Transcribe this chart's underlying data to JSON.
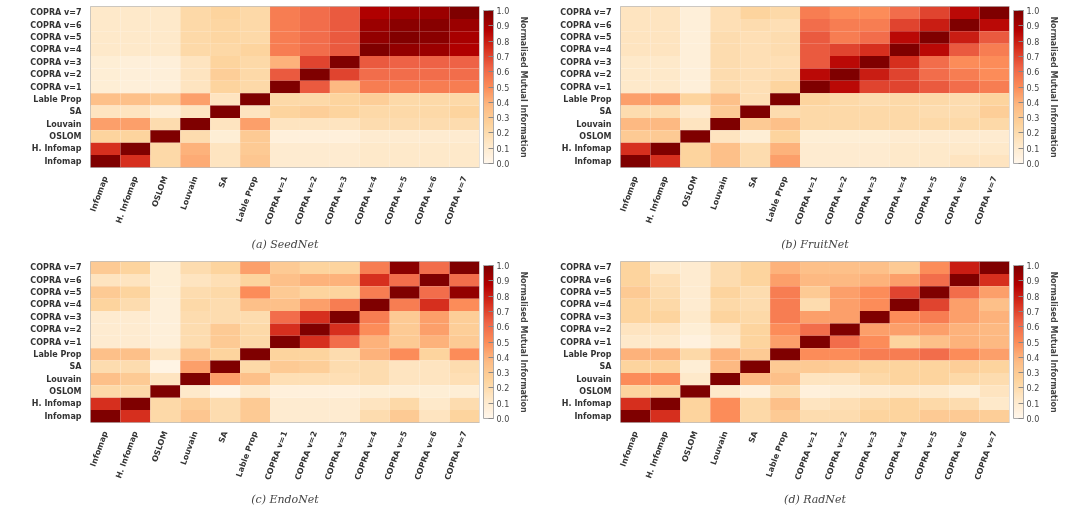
{
  "chart_data": [
    {
      "type": "heatmap",
      "title": "(a) SeedNet",
      "clabel": "Normalised Mutual Information",
      "clim": [
        0,
        1
      ],
      "cticks": [
        {
          "value": 0,
          "label": "0.0"
        },
        {
          "value": 0.1,
          "label": "0.1"
        },
        {
          "value": 0.2,
          "label": "0.2"
        },
        {
          "value": 0.3,
          "label": "0.3"
        },
        {
          "value": 0.4,
          "label": "0.4"
        },
        {
          "value": 0.5,
          "label": "0.5"
        },
        {
          "value": 0.6,
          "label": "0.6"
        },
        {
          "value": 0.7,
          "label": "0.7"
        },
        {
          "value": 0.8,
          "label": "0.8"
        },
        {
          "value": 0.9,
          "label": "0.9"
        },
        {
          "value": 1,
          "label": "1.0"
        }
      ],
      "categories": [
        "Infomap",
        "H. Infomap",
        "OSLOM",
        "Louvain",
        "SA",
        "Lable Prop",
        "COPRA v=1",
        "COPRA v=2",
        "COPRA v=3",
        "COPRA v=4",
        "COPRA v=5",
        "COPRA v=6",
        "COPRA v=7"
      ],
      "y_categories": [
        "COPRA v=7",
        "COPRA v=6",
        "COPRA v=5",
        "COPRA v=4",
        "COPRA v=3",
        "COPRA v=2",
        "COPRA v=1",
        "Lable Prop",
        "SA",
        "Louvain",
        "OSLOM",
        "H. Infomap",
        "Infomap"
      ],
      "cells": [
        [
          0.12,
          0.12,
          0.12,
          0.22,
          0.25,
          0.22,
          0.55,
          0.6,
          0.65,
          0.88,
          0.92,
          0.93,
          1.0
        ],
        [
          0.12,
          0.12,
          0.12,
          0.22,
          0.24,
          0.22,
          0.55,
          0.6,
          0.65,
          0.93,
          0.97,
          0.98,
          0.93
        ],
        [
          0.12,
          0.12,
          0.12,
          0.22,
          0.24,
          0.22,
          0.55,
          0.6,
          0.65,
          0.95,
          0.99,
          0.97,
          0.9
        ],
        [
          0.12,
          0.12,
          0.12,
          0.22,
          0.23,
          0.25,
          0.55,
          0.6,
          0.65,
          1.0,
          0.95,
          0.93,
          0.88
        ],
        [
          0.08,
          0.07,
          0.07,
          0.15,
          0.25,
          0.22,
          0.4,
          0.7,
          1.0,
          0.65,
          0.63,
          0.63,
          0.63
        ],
        [
          0.08,
          0.07,
          0.07,
          0.15,
          0.28,
          0.22,
          0.65,
          1.0,
          0.7,
          0.6,
          0.6,
          0.6,
          0.6
        ],
        [
          0.08,
          0.07,
          0.07,
          0.15,
          0.25,
          0.22,
          1.0,
          0.65,
          0.38,
          0.55,
          0.55,
          0.55,
          0.55
        ],
        [
          0.35,
          0.35,
          0.3,
          0.45,
          0.15,
          1.0,
          0.22,
          0.22,
          0.25,
          0.28,
          0.22,
          0.22,
          0.22
        ],
        [
          0.15,
          0.15,
          0.08,
          0.15,
          1.0,
          0.15,
          0.25,
          0.28,
          0.25,
          0.22,
          0.22,
          0.22,
          0.25
        ],
        [
          0.45,
          0.45,
          0.2,
          1.0,
          0.15,
          0.45,
          0.15,
          0.15,
          0.15,
          0.2,
          0.2,
          0.2,
          0.2
        ],
        [
          0.25,
          0.25,
          1.0,
          0.2,
          0.08,
          0.3,
          0.06,
          0.06,
          0.06,
          0.1,
          0.1,
          0.1,
          0.1
        ],
        [
          0.75,
          1.0,
          0.22,
          0.4,
          0.15,
          0.3,
          0.1,
          0.1,
          0.1,
          0.12,
          0.12,
          0.12,
          0.12
        ],
        [
          1.0,
          0.75,
          0.22,
          0.42,
          0.15,
          0.32,
          0.1,
          0.1,
          0.1,
          0.12,
          0.12,
          0.12,
          0.12
        ]
      ]
    },
    {
      "type": "heatmap",
      "title": "(b) FruitNet",
      "clabel": "Normalised Mutual Information",
      "clim": [
        0,
        1
      ],
      "cticks": [
        {
          "value": 0,
          "label": "0.0"
        },
        {
          "value": 0.1,
          "label": "0.1"
        },
        {
          "value": 0.2,
          "label": "0.2"
        },
        {
          "value": 0.3,
          "label": "0.3"
        },
        {
          "value": 0.4,
          "label": "0.4"
        },
        {
          "value": 0.5,
          "label": "0.5"
        },
        {
          "value": 0.6,
          "label": "0.6"
        },
        {
          "value": 0.7,
          "label": "0.7"
        },
        {
          "value": 0.8,
          "label": "0.8"
        },
        {
          "value": 0.9,
          "label": "0.9"
        },
        {
          "value": 1,
          "label": "1.0"
        }
      ],
      "categories": [
        "Infomap",
        "H. Infomap",
        "OSLOM",
        "Louvain",
        "SA",
        "Lable Prop",
        "COPRA v=1",
        "COPRA v=2",
        "COPRA v=3",
        "COPRA v=4",
        "COPRA v=5",
        "COPRA v=6",
        "COPRA v=7"
      ],
      "y_categories": [
        "COPRA v=7",
        "COPRA v=6",
        "COPRA v=5",
        "COPRA v=4",
        "COPRA v=3",
        "COPRA v=2",
        "COPRA v=1",
        "Lable Prop",
        "SA",
        "Louvain",
        "OSLOM",
        "H. Infomap",
        "Infomap"
      ],
      "cells": [
        [
          0.15,
          0.15,
          0.07,
          0.18,
          0.25,
          0.22,
          0.55,
          0.5,
          0.5,
          0.6,
          0.7,
          0.85,
          1.0
        ],
        [
          0.15,
          0.15,
          0.07,
          0.18,
          0.2,
          0.18,
          0.6,
          0.55,
          0.55,
          0.7,
          0.8,
          1.0,
          0.85
        ],
        [
          0.15,
          0.15,
          0.07,
          0.2,
          0.18,
          0.2,
          0.65,
          0.55,
          0.6,
          0.85,
          1.0,
          0.8,
          0.65
        ],
        [
          0.15,
          0.15,
          0.07,
          0.2,
          0.18,
          0.2,
          0.65,
          0.7,
          0.75,
          1.0,
          0.85,
          0.65,
          0.55
        ],
        [
          0.12,
          0.12,
          0.07,
          0.2,
          0.18,
          0.18,
          0.65,
          0.85,
          1.0,
          0.75,
          0.6,
          0.5,
          0.5
        ],
        [
          0.12,
          0.12,
          0.07,
          0.2,
          0.18,
          0.2,
          0.85,
          1.0,
          0.8,
          0.7,
          0.6,
          0.55,
          0.5
        ],
        [
          0.12,
          0.12,
          0.07,
          0.2,
          0.18,
          0.25,
          1.0,
          0.85,
          0.7,
          0.7,
          0.65,
          0.6,
          0.55
        ],
        [
          0.45,
          0.45,
          0.25,
          0.35,
          0.18,
          1.0,
          0.25,
          0.22,
          0.2,
          0.22,
          0.22,
          0.2,
          0.25
        ],
        [
          0.2,
          0.2,
          0.1,
          0.3,
          1.0,
          0.2,
          0.22,
          0.22,
          0.22,
          0.22,
          0.2,
          0.2,
          0.28
        ],
        [
          0.38,
          0.38,
          0.15,
          1.0,
          0.3,
          0.35,
          0.22,
          0.22,
          0.22,
          0.22,
          0.22,
          0.22,
          0.22
        ],
        [
          0.3,
          0.3,
          1.0,
          0.15,
          0.08,
          0.25,
          0.08,
          0.08,
          0.08,
          0.1,
          0.1,
          0.1,
          0.1
        ],
        [
          0.75,
          1.0,
          0.25,
          0.35,
          0.2,
          0.4,
          0.1,
          0.1,
          0.1,
          0.12,
          0.12,
          0.12,
          0.12
        ],
        [
          1.0,
          0.75,
          0.25,
          0.35,
          0.2,
          0.45,
          0.1,
          0.1,
          0.1,
          0.12,
          0.12,
          0.15,
          0.15
        ]
      ]
    },
    {
      "type": "heatmap",
      "title": "(c) EndoNet",
      "clabel": "Normalised Mutual Information",
      "clim": [
        0,
        1
      ],
      "cticks": [
        {
          "value": 0,
          "label": "0.0"
        },
        {
          "value": 0.1,
          "label": "0.1"
        },
        {
          "value": 0.2,
          "label": "0.2"
        },
        {
          "value": 0.3,
          "label": "0.3"
        },
        {
          "value": 0.4,
          "label": "0.4"
        },
        {
          "value": 0.5,
          "label": "0.5"
        },
        {
          "value": 0.6,
          "label": "0.6"
        },
        {
          "value": 0.7,
          "label": "0.7"
        },
        {
          "value": 0.8,
          "label": "0.8"
        },
        {
          "value": 0.9,
          "label": "0.9"
        },
        {
          "value": 1,
          "label": "1.0"
        }
      ],
      "categories": [
        "Infomap",
        "H. Infomap",
        "OSLOM",
        "Louvain",
        "SA",
        "Lable Prop",
        "COPRA v=1",
        "COPRA v=2",
        "COPRA v=3",
        "COPRA v=4",
        "COPRA v=5",
        "COPRA v=6",
        "COPRA v=7"
      ],
      "y_categories": [
        "COPRA v=7",
        "COPRA v=6",
        "COPRA v=5",
        "COPRA v=4",
        "COPRA v=3",
        "COPRA v=2",
        "COPRA v=1",
        "Lable Prop",
        "SA",
        "Louvain",
        "OSLOM",
        "H. Infomap",
        "Infomap"
      ],
      "cells": [
        [
          0.3,
          0.25,
          0.08,
          0.2,
          0.25,
          0.45,
          0.3,
          0.25,
          0.25,
          0.55,
          0.97,
          0.6,
          1.0
        ],
        [
          0.15,
          0.15,
          0.08,
          0.15,
          0.18,
          0.25,
          0.35,
          0.4,
          0.4,
          0.75,
          0.6,
          1.0,
          0.6
        ],
        [
          0.3,
          0.25,
          0.08,
          0.2,
          0.22,
          0.5,
          0.3,
          0.25,
          0.25,
          0.55,
          1.0,
          0.6,
          0.95
        ],
        [
          0.25,
          0.2,
          0.07,
          0.22,
          0.2,
          0.35,
          0.35,
          0.45,
          0.55,
          1.0,
          0.55,
          0.75,
          0.5
        ],
        [
          0.1,
          0.1,
          0.07,
          0.2,
          0.2,
          0.2,
          0.6,
          0.75,
          1.0,
          0.55,
          0.3,
          0.45,
          0.28
        ],
        [
          0.1,
          0.1,
          0.07,
          0.2,
          0.3,
          0.22,
          0.75,
          1.0,
          0.75,
          0.5,
          0.3,
          0.45,
          0.28
        ],
        [
          0.1,
          0.1,
          0.07,
          0.2,
          0.3,
          0.22,
          1.0,
          0.75,
          0.6,
          0.4,
          0.3,
          0.4,
          0.3
        ],
        [
          0.35,
          0.35,
          0.15,
          0.35,
          0.25,
          1.0,
          0.25,
          0.25,
          0.2,
          0.4,
          0.5,
          0.25,
          0.5
        ],
        [
          0.2,
          0.2,
          0.03,
          0.45,
          1.0,
          0.22,
          0.3,
          0.28,
          0.2,
          0.2,
          0.15,
          0.15,
          0.2
        ],
        [
          0.35,
          0.3,
          0.15,
          1.0,
          0.45,
          0.35,
          0.18,
          0.18,
          0.18,
          0.2,
          0.15,
          0.15,
          0.18
        ],
        [
          0.22,
          0.22,
          1.0,
          0.12,
          0.03,
          0.12,
          0.06,
          0.06,
          0.06,
          0.08,
          0.08,
          0.08,
          0.08
        ],
        [
          0.75,
          1.0,
          0.22,
          0.28,
          0.2,
          0.3,
          0.1,
          0.1,
          0.1,
          0.15,
          0.22,
          0.12,
          0.2
        ],
        [
          1.0,
          0.75,
          0.22,
          0.32,
          0.2,
          0.3,
          0.1,
          0.1,
          0.1,
          0.2,
          0.3,
          0.15,
          0.25
        ]
      ]
    },
    {
      "type": "heatmap",
      "title": "(d) RadNet",
      "clabel": "Normalised Mutual Information",
      "clim": [
        0,
        1
      ],
      "cticks": [
        {
          "value": 0,
          "label": "0.0"
        },
        {
          "value": 0.1,
          "label": "0.1"
        },
        {
          "value": 0.2,
          "label": "0.2"
        },
        {
          "value": 0.3,
          "label": "0.3"
        },
        {
          "value": 0.4,
          "label": "0.4"
        },
        {
          "value": 0.5,
          "label": "0.5"
        },
        {
          "value": 0.6,
          "label": "0.6"
        },
        {
          "value": 0.7,
          "label": "0.7"
        },
        {
          "value": 0.8,
          "label": "0.8"
        },
        {
          "value": 0.9,
          "label": "0.9"
        },
        {
          "value": 1,
          "label": "1.0"
        }
      ],
      "categories": [
        "Infomap",
        "H. Infomap",
        "OSLOM",
        "Louvain",
        "SA",
        "Lable Prop",
        "COPRA v=1",
        "COPRA v=2",
        "COPRA v=3",
        "COPRA v=4",
        "COPRA v=5",
        "COPRA v=6",
        "COPRA v=7"
      ],
      "y_categories": [
        "COPRA v=7",
        "COPRA v=6",
        "COPRA v=5",
        "COPRA v=4",
        "COPRA v=3",
        "COPRA v=2",
        "COPRA v=1",
        "Lable Prop",
        "SA",
        "Louvain",
        "OSLOM",
        "H. Infomap",
        "Infomap"
      ],
      "cells": [
        [
          0.25,
          0.12,
          0.1,
          0.2,
          0.25,
          0.4,
          0.35,
          0.35,
          0.35,
          0.3,
          0.5,
          0.8,
          1.0
        ],
        [
          0.25,
          0.18,
          0.1,
          0.2,
          0.25,
          0.45,
          0.38,
          0.38,
          0.4,
          0.45,
          0.6,
          1.0,
          0.75
        ],
        [
          0.3,
          0.2,
          0.1,
          0.25,
          0.2,
          0.55,
          0.3,
          0.45,
          0.5,
          0.7,
          1.0,
          0.6,
          0.45
        ],
        [
          0.25,
          0.22,
          0.1,
          0.22,
          0.2,
          0.55,
          0.2,
          0.45,
          0.5,
          1.0,
          0.7,
          0.45,
          0.35
        ],
        [
          0.25,
          0.25,
          0.12,
          0.25,
          0.22,
          0.55,
          0.45,
          0.45,
          1.0,
          0.5,
          0.55,
          0.45,
          0.4
        ],
        [
          0.15,
          0.15,
          0.08,
          0.15,
          0.25,
          0.5,
          0.6,
          1.0,
          0.45,
          0.45,
          0.45,
          0.4,
          0.38
        ],
        [
          0.12,
          0.12,
          0.05,
          0.12,
          0.25,
          0.45,
          1.0,
          0.6,
          0.5,
          0.25,
          0.35,
          0.4,
          0.38
        ],
        [
          0.4,
          0.4,
          0.22,
          0.4,
          0.3,
          1.0,
          0.5,
          0.5,
          0.55,
          0.55,
          0.6,
          0.5,
          0.45
        ],
        [
          0.25,
          0.25,
          0.08,
          0.38,
          1.0,
          0.3,
          0.3,
          0.28,
          0.25,
          0.25,
          0.25,
          0.28,
          0.25
        ],
        [
          0.5,
          0.5,
          0.12,
          1.0,
          0.38,
          0.35,
          0.15,
          0.15,
          0.22,
          0.25,
          0.25,
          0.22,
          0.2
        ],
        [
          0.25,
          0.25,
          1.0,
          0.12,
          0.06,
          0.2,
          0.06,
          0.08,
          0.1,
          0.12,
          0.12,
          0.08,
          0.15
        ],
        [
          0.75,
          1.0,
          0.25,
          0.5,
          0.22,
          0.35,
          0.15,
          0.18,
          0.22,
          0.25,
          0.22,
          0.2,
          0.12
        ],
        [
          1.0,
          0.75,
          0.25,
          0.5,
          0.22,
          0.3,
          0.2,
          0.2,
          0.25,
          0.25,
          0.3,
          0.3,
          0.28
        ]
      ]
    }
  ]
}
